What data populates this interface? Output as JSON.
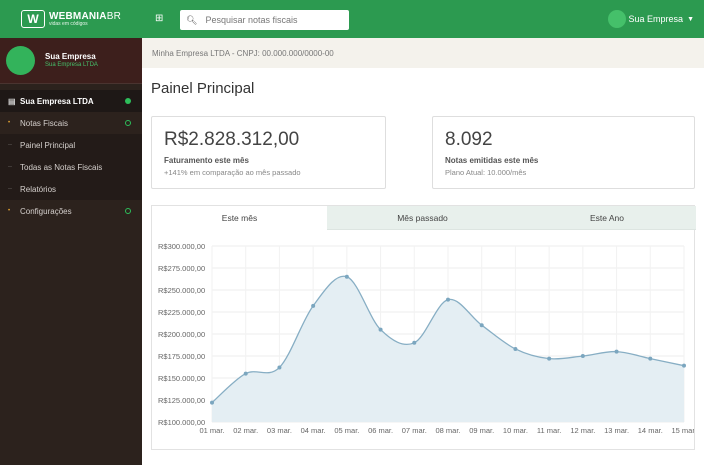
{
  "brand": {
    "name": "WEBMANIA",
    "name_suffix": "BR",
    "tagline": "vidas em códigos",
    "logo_letter": "W"
  },
  "profile": {
    "name": "Sua Empresa",
    "subtitle": "Sua Empresa LTDA"
  },
  "sidebar": {
    "items": [
      {
        "label": "Sua Empresa LTDA",
        "type": "header"
      },
      {
        "label": "Notas Fiscais",
        "type": "item"
      },
      {
        "label": "Painel Principal",
        "type": "sub"
      },
      {
        "label": "Todas as Notas Fiscais",
        "type": "sub"
      },
      {
        "label": "Relatórios",
        "type": "sub"
      },
      {
        "label": "Configurações",
        "type": "item"
      }
    ]
  },
  "topbar": {
    "search_placeholder": "Pesquisar notas fiscais",
    "user_label": "Sua Empresa"
  },
  "breadcrumb": "Minha Empresa LTDA - CNPJ: 00.000.000/0000-00",
  "page_title": "Painel Principal",
  "cards": [
    {
      "value": "R$2.828.312,00",
      "label": "Faturamento este mês",
      "sub": "+141% em comparação ao mês passado"
    },
    {
      "value": "8.092",
      "label": "Notas emitidas este mês",
      "sub": "Plano Atual: 10.000/mês"
    }
  ],
  "tabs": [
    "Este mês",
    "Mês passado",
    "Este Ano"
  ],
  "colors": {
    "accent": "#2c9a50",
    "sidebar": "#2c221d",
    "line": "#87aec4",
    "area": "#e4eef3"
  },
  "chart_data": {
    "type": "area",
    "categories": [
      "01 mar.",
      "02 mar.",
      "03 mar.",
      "04 mar.",
      "05 mar.",
      "06 mar.",
      "07 mar.",
      "08 mar.",
      "09 mar.",
      "10 mar.",
      "11 mar.",
      "12 mar.",
      "13 mar.",
      "14 mar.",
      "15 mar."
    ],
    "values": [
      122000,
      155000,
      162000,
      232000,
      265000,
      205000,
      190000,
      239000,
      210000,
      183000,
      172000,
      175000,
      180000,
      172000,
      164000
    ],
    "ylim": [
      100000,
      300000
    ],
    "yticks": [
      "R$300.000,00",
      "R$275.000,00",
      "R$250.000,00",
      "R$225.000,00",
      "R$200.000,00",
      "R$175.000,00",
      "R$150.000,00",
      "R$125.000,00",
      "R$100.000,00"
    ],
    "grid": true
  }
}
